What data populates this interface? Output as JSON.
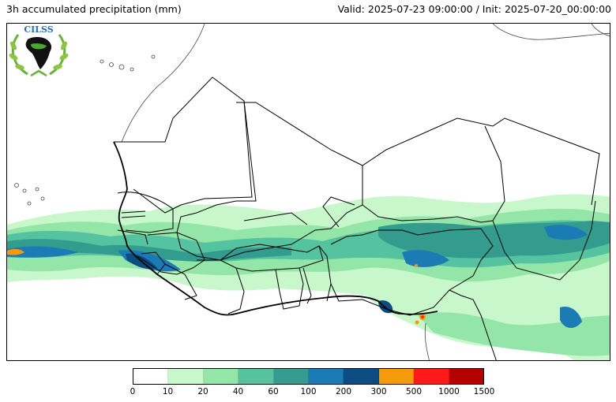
{
  "header": {
    "title": "3h accumulated precipitation (mm)",
    "valid_init": "Valid: 2025-07-23 09:00:00 / Init: 2025-07-20_00:00:00"
  },
  "logo": {
    "text": "CILSS"
  },
  "legend": {
    "ticks": [
      "0",
      "10",
      "20",
      "40",
      "60",
      "100",
      "200",
      "300",
      "500",
      "1000",
      "1500"
    ],
    "colors": [
      "#ffffff",
      "#c8f7cc",
      "#94e6a8",
      "#55c2a0",
      "#339c8f",
      "#1a7bb5",
      "#0b4d80",
      "#f59a0a",
      "#ff1a1a",
      "#b30000"
    ]
  }
}
